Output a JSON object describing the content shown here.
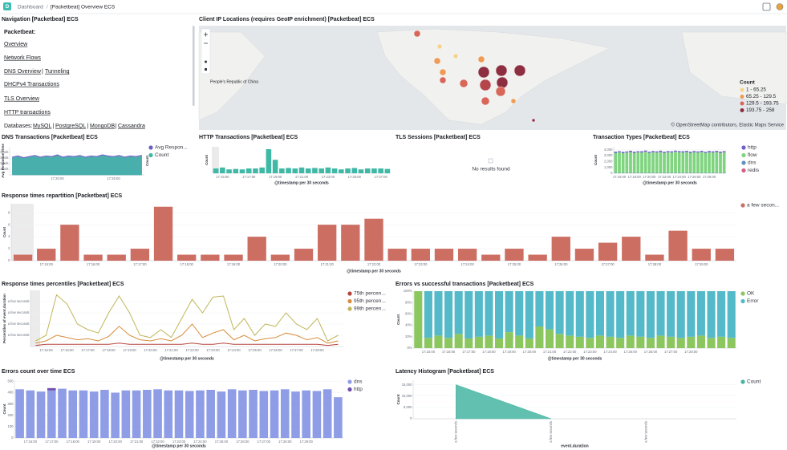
{
  "breadcrumb": [
    "Dashboard",
    "[Packetbeat] Overview ECS"
  ],
  "separator": "|",
  "nav": {
    "title": "Navigation [Packetbeat] ECS",
    "heading": "Packetbeat:",
    "links": [
      "Overview",
      "Network Flows",
      "DNS Overview",
      "Tunneling",
      "DHCPv4 Transactions",
      "TLS Overview",
      "HTTP transactions"
    ],
    "databases_label": "Databases:",
    "databases": [
      "MySQL",
      "PostgreSQL",
      "MongoDB",
      "Cassandra"
    ]
  },
  "map": {
    "title": "Client IP Locations (requires GeoIP enrichment) [Packetbeat] ECS",
    "place_label": "People's Republic of China",
    "legend_title": "Count",
    "legend": [
      {
        "label": "1 - 65.25",
        "color": "#f6d38c"
      },
      {
        "label": "65.25 - 129.5",
        "color": "#ef9a55"
      },
      {
        "label": "129.5 - 193.75",
        "color": "#d8675a"
      },
      {
        "label": "193.75 - 258",
        "color": "#8e2e41"
      }
    ],
    "attribution": "© OpenStreetMap contributors, Elastic Maps Service"
  },
  "tls": {
    "title": "TLS Sessions [Packetbeat] ECS",
    "message": "No results found"
  },
  "panels": {
    "dns": {
      "type": "line",
      "area": true,
      "title": "DNS Transactions [Packetbeat] ECS",
      "categories": [
        null,
        null,
        null,
        null,
        null,
        null,
        null,
        null,
        "17:20:00",
        null,
        null,
        null,
        null,
        null,
        null,
        null,
        null,
        null,
        "17:25:00",
        null,
        null,
        null,
        null,
        null
      ],
      "ylim": [
        0,
        5
      ],
      "yticks": [
        {
          "value": 1,
          "label": "a few seconds"
        },
        {
          "value": 2,
          "label": "a few seconds"
        },
        {
          "value": 3,
          "label": "a few seconds"
        },
        {
          "value": 4,
          "label": "a few seconds"
        }
      ],
      "ylabel": "Avg Response Time",
      "y2label": "Count",
      "series": [
        {
          "name": "Avg Respon...",
          "color": "#6a5fc7",
          "values": [
            3.2,
            3.4,
            3.1,
            3.3,
            3.5,
            3.2,
            3.4,
            3.3,
            3.6,
            3.2,
            3.4,
            3.3,
            3.5,
            3.2,
            3.4,
            3.3,
            3.6,
            3.4,
            3.3,
            3.5,
            3.2,
            3.4,
            3.3,
            3.5
          ]
        },
        {
          "name": "Count",
          "color": "#3fb8a6",
          "values": [
            3.0,
            3.2,
            2.9,
            3.1,
            3.3,
            3.0,
            3.2,
            3.1,
            3.4,
            3.0,
            3.2,
            3.1,
            3.3,
            3.0,
            3.2,
            3.1,
            3.4,
            3.2,
            3.1,
            3.3,
            3.0,
            3.2,
            3.1,
            3.3
          ]
        }
      ]
    },
    "http": {
      "type": "bar",
      "title": "HTTP Transactions [Packetbeat] ECS",
      "xlabel": "@timestamp per 30 seconds",
      "ylabel": "Count",
      "categories": [
        null,
        "17:15:00",
        null,
        null,
        null,
        "17:17:00",
        null,
        null,
        null,
        "17:19:00",
        null,
        null,
        null,
        "17:21:00",
        null,
        null,
        null,
        "17:23:00",
        null,
        null,
        null,
        "17:25:00",
        null,
        null,
        null,
        "17:27:00",
        null
      ],
      "ylim": [
        0,
        55
      ],
      "series": [
        {
          "name": "Count",
          "color": "#3fb8a6",
          "values": [
            10,
            12,
            8,
            9,
            8,
            10,
            10,
            12,
            50,
            28,
            10,
            11,
            10,
            12,
            10,
            11,
            10,
            12,
            10,
            8,
            10,
            11,
            8,
            10,
            10,
            10,
            9
          ]
        }
      ]
    },
    "types": {
      "type": "bar",
      "title": "Transaction Types [Packetbeat] ECS",
      "xlabel": "@timestamp per 30 seconds",
      "ylabel": "Count",
      "categories": [
        null,
        "17:16:00",
        null,
        null,
        null,
        "17:18:00",
        null,
        null,
        null,
        "17:20:00",
        null,
        null,
        null,
        "17:22:00",
        null,
        null,
        null,
        "17:24:00",
        null,
        null,
        null,
        "17:26:00",
        null,
        null,
        null,
        "17:28:00",
        null,
        null,
        null,
        null
      ],
      "ylim": [
        0,
        4500
      ],
      "yticks": [
        0,
        {
          "value": 1000,
          "label": "1,000"
        },
        {
          "value": 2000,
          "label": "2,000"
        },
        {
          "value": 3000,
          "label": "3,000"
        },
        {
          "value": 4000,
          "label": "4,000"
        }
      ],
      "series": [
        {
          "name": "http",
          "color": "#6f5fc9",
          "values": [
            200,
            180,
            220,
            190,
            210,
            200,
            180,
            220,
            200,
            190,
            210,
            200,
            220,
            190,
            200,
            210,
            180,
            200,
            220,
            190,
            200,
            210,
            190,
            200,
            180,
            220,
            200,
            190,
            210,
            200
          ]
        },
        {
          "name": "flow",
          "color": "#7fd47f",
          "values": [
            3400,
            3500,
            3350,
            3450,
            3550,
            3400,
            3500,
            3450,
            3600,
            3400,
            3500,
            3450,
            3550,
            3400,
            3500,
            3450,
            3600,
            3500,
            3450,
            3550,
            3400,
            3500,
            3450,
            3550,
            3400,
            3500,
            3450,
            3550,
            3400,
            3500
          ]
        },
        {
          "name": "dns",
          "color": "#6092c0",
          "values": [
            60,
            60,
            60,
            60,
            60,
            60,
            60,
            60,
            60,
            60,
            60,
            60,
            60,
            60,
            60,
            60,
            60,
            60,
            60,
            60,
            60,
            60,
            60,
            60,
            60,
            60,
            60,
            60,
            60,
            60
          ]
        },
        {
          "name": "redis",
          "color": "#d36086",
          "values": [
            10,
            10,
            10,
            10,
            10,
            10,
            10,
            10,
            10,
            10,
            10,
            10,
            10,
            10,
            10,
            10,
            10,
            10,
            10,
            10,
            10,
            10,
            10,
            10,
            10,
            10,
            10,
            10,
            10,
            10
          ]
        }
      ]
    },
    "resp": {
      "type": "bar",
      "title": "Response times repartition [Packetbeat] ECS",
      "xlabel": "@timestamp per 30 seconds",
      "ylabel": "Count",
      "categories": [
        null,
        "17:15:00",
        null,
        "17:16:00",
        null,
        "17:17:00",
        null,
        "17:18:00",
        null,
        "17:19:00",
        null,
        "17:20:00",
        null,
        "17:21:00",
        null,
        "17:22:00",
        null,
        "17:23:00",
        null,
        "17:24:00",
        null,
        "17:25:00",
        null,
        "17:26:00",
        null,
        "17:27:00",
        null,
        "17:28:00",
        null,
        "17:29:00",
        null
      ],
      "ylim": [
        0,
        9.5
      ],
      "yticks": [
        0,
        2,
        4,
        6,
        8
      ],
      "series": [
        {
          "name": "a few secon...",
          "color": "#cd6e63",
          "values": [
            1,
            2,
            6,
            1,
            1,
            2,
            9,
            1,
            1,
            1,
            4,
            1,
            2,
            6,
            6,
            7,
            2,
            2,
            2,
            2,
            1,
            2,
            1,
            4,
            2,
            3,
            4,
            1,
            5,
            2,
            2
          ]
        }
      ]
    },
    "pct": {
      "type": "line",
      "title": "Response times percentiles [Packetbeat] ECS",
      "xlabel": "@timestamp per 30 seconds",
      "ylabel": "Percentiles of event.duration",
      "categories": [
        null,
        "17:15:00",
        null,
        "17:16:00",
        null,
        "17:17:00",
        null,
        "17:18:00",
        null,
        "17:19:00",
        null,
        "17:20:00",
        null,
        "17:21:00",
        null,
        "17:22:00",
        null,
        "17:23:00",
        null,
        "17:24:00",
        null,
        "17:25:00",
        null,
        "17:26:00",
        null,
        "17:27:00",
        null,
        "17:28:00",
        null,
        null
      ],
      "ylim": [
        0,
        5
      ],
      "yticks": [
        {
          "value": 1,
          "label": "a few seconds"
        },
        {
          "value": 2,
          "label": "a few seconds"
        },
        {
          "value": 3,
          "label": "a few seconds"
        },
        {
          "value": 4,
          "label": "a few seconds"
        }
      ],
      "series": [
        {
          "name": "75th percen...",
          "color": "#b5443b",
          "values": [
            0.1,
            0.2,
            0.2,
            0.2,
            0.2,
            0.2,
            0.2,
            0.2,
            0.3,
            0.2,
            0.2,
            0.2,
            0.2,
            0.2,
            0.2,
            0.3,
            0.2,
            0.2,
            0.3,
            0.2,
            0.2,
            0.2,
            0.2,
            0.2,
            0.2,
            0.2,
            0.2,
            0.2,
            0.1,
            0.2
          ]
        },
        {
          "name": "95th percen...",
          "color": "#d88c3c",
          "values": [
            0.3,
            0.5,
            1,
            0.8,
            0.6,
            0.7,
            0.5,
            0.9,
            1.8,
            1,
            0.6,
            0.5,
            0.7,
            0.5,
            1,
            2,
            0.8,
            1.2,
            1.5,
            0.6,
            1,
            0.5,
            0.7,
            0.8,
            1.2,
            1,
            0.6,
            0.8,
            0.3,
            0.5
          ]
        },
        {
          "name": "99th percen...",
          "color": "#c2b659",
          "values": [
            0.5,
            1,
            4.6,
            3.8,
            2,
            1.5,
            1.2,
            3,
            4.5,
            3,
            1,
            0.8,
            1.5,
            0.8,
            2.5,
            4.2,
            3,
            4.4,
            4.5,
            1.5,
            2.5,
            1,
            2,
            1.8,
            3,
            2,
            1.5,
            2.5,
            0.5,
            1
          ]
        }
      ]
    },
    "evs": {
      "type": "bar",
      "title": "Errors vs successful transactions [Packetbeat] ECS",
      "xlabel": "@timestamp per 30 seconds",
      "ylabel": "Count",
      "categories": [
        null,
        "17:15:00",
        null,
        "17:16:00",
        null,
        "17:17:00",
        null,
        "17:18:00",
        null,
        "17:19:00",
        null,
        "17:20:00",
        null,
        "17:21:00",
        null,
        "17:22:00",
        null,
        "17:23:00",
        null,
        "17:24:00",
        null,
        "17:25:00",
        null,
        "17:26:00",
        null,
        "17:27:00",
        null,
        "17:28:00",
        null,
        null,
        null,
        null
      ],
      "ylim": [
        0,
        100
      ],
      "yticks": [
        {
          "value": 0,
          "label": "0%"
        },
        {
          "value": 20,
          "label": "20%"
        },
        {
          "value": 40,
          "label": "40%"
        },
        {
          "value": 60,
          "label": "60%"
        },
        {
          "value": 80,
          "label": "80%"
        },
        {
          "value": 100,
          "label": "100%"
        }
      ],
      "series": [
        {
          "name": "OK",
          "color": "#8cc65f",
          "values": [
            100,
            18,
            22,
            18,
            25,
            17,
            20,
            22,
            17,
            28,
            22,
            17,
            38,
            33,
            25,
            22,
            20,
            18,
            22,
            20,
            18,
            22,
            20,
            18,
            22,
            20,
            18,
            20,
            22,
            18,
            20,
            18
          ]
        },
        {
          "name": "Error",
          "color": "#54b9c8",
          "values": [
            0,
            82,
            78,
            82,
            75,
            83,
            80,
            78,
            83,
            72,
            78,
            83,
            62,
            67,
            75,
            78,
            80,
            82,
            78,
            80,
            82,
            78,
            80,
            82,
            78,
            80,
            82,
            80,
            78,
            82,
            80,
            82
          ]
        }
      ]
    },
    "ecount": {
      "type": "bar",
      "title": "Errors count over time ECS",
      "xlabel": "@timestamp per 30 seconds",
      "ylabel": "Count",
      "categories": [
        null,
        "17:16:00",
        null,
        "17:17:00",
        null,
        "17:18:00",
        null,
        "17:19:00",
        null,
        "17:20:00",
        null,
        "17:21:00",
        null,
        "17:22:00",
        null,
        "17:23:00",
        null,
        "17:24:00",
        null,
        "17:25:00",
        null,
        "17:26:00",
        null,
        "17:27:00",
        null,
        "17:28:00",
        null,
        "17:29:00",
        null,
        null,
        null
      ],
      "ylim": [
        0,
        510
      ],
      "yticks": [
        0,
        100,
        200,
        300,
        400,
        500
      ],
      "series": [
        {
          "name": "dns",
          "color": "#8e9de6",
          "values": [
            430,
            420,
            410,
            420,
            435,
            420,
            420,
            410,
            425,
            400,
            420,
            420,
            425,
            430,
            420,
            420,
            415,
            420,
            425,
            410,
            430,
            420,
            425,
            415,
            420,
            430,
            410,
            420,
            415,
            430,
            360
          ]
        },
        {
          "name": "http",
          "color": "#6f4eaf",
          "values": [
            0,
            0,
            0,
            20,
            0,
            0,
            0,
            0,
            0,
            0,
            0,
            0,
            0,
            0,
            0,
            0,
            0,
            0,
            0,
            0,
            0,
            0,
            0,
            0,
            0,
            0,
            0,
            0,
            0,
            0,
            0
          ]
        }
      ]
    },
    "lat": {
      "type": "line",
      "area": true,
      "title": "Latency Histogram [Packetbeat] ECS",
      "xlabel": "event.duration",
      "ylabel": "Count",
      "x": [
        1,
        2
      ],
      "xlim": [
        0.55,
        3.95
      ],
      "xticks": [
        {
          "value": 1,
          "label": "a few seconds"
        },
        {
          "value": 2,
          "label": "a few seconds"
        },
        {
          "value": 3,
          "label": "a few seconds"
        }
      ],
      "ylim": [
        0,
        17000
      ],
      "yticks": [
        0,
        {
          "value": 5000,
          "label": "5,000"
        },
        {
          "value": 10000,
          "label": "10,000"
        },
        {
          "value": 15000,
          "label": "15,000"
        }
      ],
      "series": [
        {
          "name": "Count",
          "color": "#45b5a1",
          "values": [
            15000,
            0
          ]
        }
      ]
    }
  }
}
